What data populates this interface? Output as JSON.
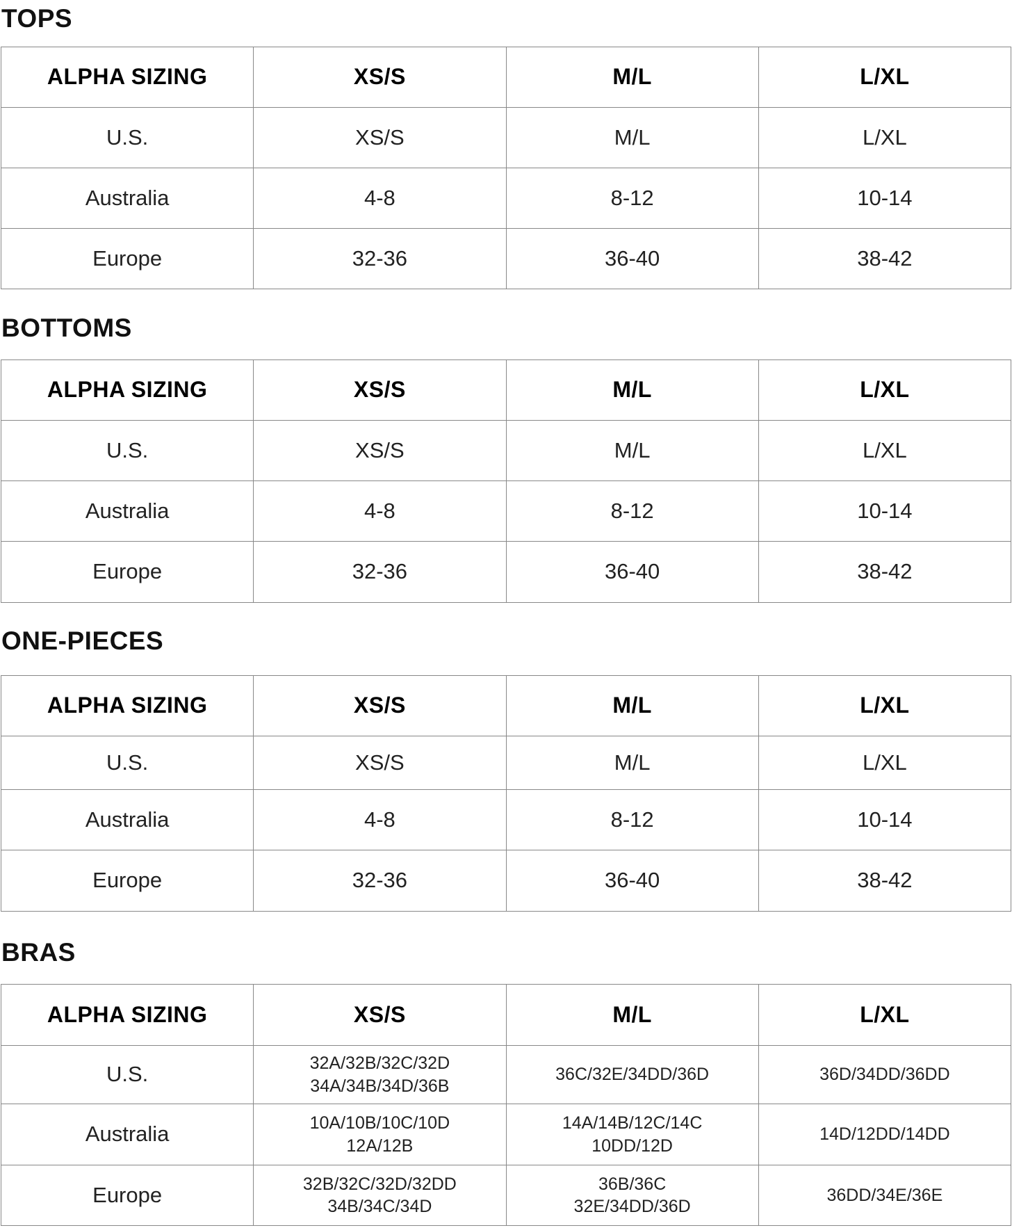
{
  "sections": [
    {
      "title": "TOPS",
      "header": [
        "ALPHA SIZING",
        "XS/S",
        "M/L",
        "L/XL"
      ],
      "rows": [
        [
          "U.S.",
          "XS/S",
          "M/L",
          "L/XL"
        ],
        [
          "Australia",
          "4-8",
          "8-12",
          "10-14"
        ],
        [
          "Europe",
          "32-36",
          "36-40",
          "38-42"
        ]
      ]
    },
    {
      "title": "BOTTOMS",
      "header": [
        "ALPHA SIZING",
        "XS/S",
        "M/L",
        "L/XL"
      ],
      "rows": [
        [
          "U.S.",
          "XS/S",
          "M/L",
          "L/XL"
        ],
        [
          "Australia",
          "4-8",
          "8-12",
          "10-14"
        ],
        [
          "Europe",
          "32-36",
          "36-40",
          "38-42"
        ]
      ]
    },
    {
      "title": "ONE-PIECES",
      "header": [
        "ALPHA SIZING",
        "XS/S",
        "M/L",
        "L/XL"
      ],
      "rows": [
        [
          "U.S.",
          "XS/S",
          "M/L",
          "L/XL"
        ],
        [
          "Australia",
          "4-8",
          "8-12",
          "10-14"
        ],
        [
          "Europe",
          "32-36",
          "36-40",
          "38-42"
        ]
      ]
    },
    {
      "title": "BRAS",
      "header": [
        "ALPHA SIZING",
        "XS/S",
        "M/L",
        "L/XL"
      ],
      "rows": [
        [
          "U.S.",
          [
            "32A/32B/32C/32D",
            "34A/34B/34D/36B"
          ],
          [
            "36C/32E/34DD/36D"
          ],
          [
            "36D/34DD/36DD"
          ]
        ],
        [
          "Australia",
          [
            "10A/10B/10C/10D",
            "12A/12B"
          ],
          [
            "14A/14B/12C/14C",
            "10DD/12D"
          ],
          [
            "14D/12DD/14DD"
          ]
        ],
        [
          "Europe",
          [
            "32B/32C/32D/32DD",
            "34B/34C/34D"
          ],
          [
            "36B/36C",
            "32E/34DD/36D"
          ],
          [
            "36DD/34E/36E"
          ]
        ]
      ]
    }
  ]
}
